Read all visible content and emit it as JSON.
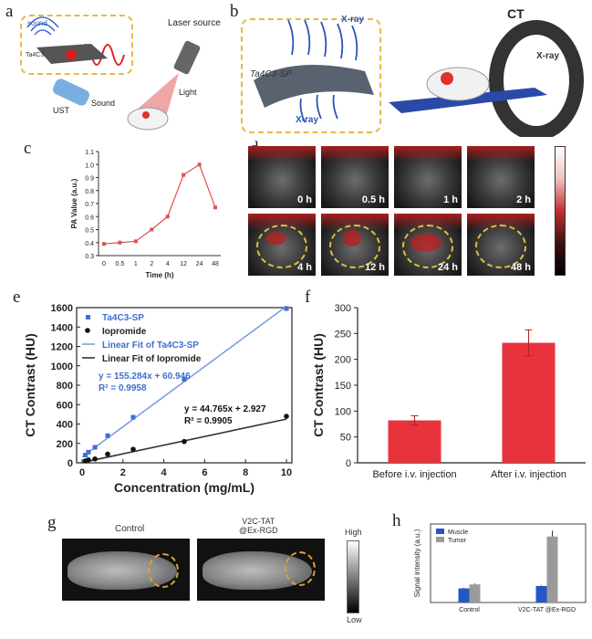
{
  "panels": {
    "a": {
      "label": "a",
      "texts": {
        "sound": "sound",
        "material": "Ta4C3",
        "laser": "Laser source",
        "light": "Light",
        "ust": "UST",
        "sound2": "Sound"
      }
    },
    "b": {
      "label": "b",
      "texts": {
        "xray_top": "X-ray",
        "xray_bottom": "X-ray",
        "material": "Ta4C3-SP",
        "ct": "CT",
        "xray_ring": "X-ray"
      }
    },
    "c": {
      "label": "c"
    },
    "d": {
      "label": "d",
      "tiles": [
        {
          "time": "0 h"
        },
        {
          "time": "0.5 h"
        },
        {
          "time": "1 h"
        },
        {
          "time": "2 h"
        },
        {
          "time": "4 h"
        },
        {
          "time": "12 h"
        },
        {
          "time": "24 h"
        },
        {
          "time": "48 h"
        }
      ]
    },
    "e": {
      "label": "e"
    },
    "f": {
      "label": "f"
    },
    "g": {
      "label": "g",
      "images": [
        {
          "title": "Control"
        },
        {
          "title": "V2C-TAT",
          "title2": "@Ex-RGD"
        }
      ],
      "scale": {
        "high": "High",
        "low": "Low"
      }
    },
    "h": {
      "label": "h"
    }
  },
  "chart_data": [
    {
      "id": "c",
      "type": "line",
      "xlabel": "Time (h)",
      "ylabel": "PA Value (a.u.)",
      "categories": [
        "0",
        "0.5",
        "1",
        "2",
        "4",
        "12",
        "24",
        "48"
      ],
      "values": [
        0.39,
        0.4,
        0.41,
        0.5,
        0.6,
        0.92,
        1.0,
        0.67
      ],
      "ylim": [
        0.3,
        1.1
      ],
      "yticks": [
        "0.3",
        "0.4",
        "0.5",
        "0.6",
        "0.7",
        "0.8",
        "0.9",
        "1.0",
        "1.1"
      ],
      "color": "#d9534f"
    },
    {
      "id": "e",
      "type": "scatter",
      "xlabel": "Concentration (mg/mL)",
      "ylabel": "CT Contrast (HU)",
      "xlim": [
        0,
        10
      ],
      "ylim": [
        0,
        1600
      ],
      "xticks": [
        "0",
        "2",
        "4",
        "6",
        "8",
        "10"
      ],
      "yticks": [
        "0",
        "200",
        "400",
        "600",
        "800",
        "1000",
        "1200",
        "1400",
        "1600"
      ],
      "series": [
        {
          "name": "Ta4C3-SP",
          "color": "#3f6fcf",
          "x": [
            0.16,
            0.31,
            0.63,
            1.25,
            2.5,
            5,
            10
          ],
          "y": [
            80,
            110,
            160,
            280,
            470,
            860,
            1590
          ]
        },
        {
          "name": "Iopromide",
          "color": "#111111",
          "x": [
            0.16,
            0.31,
            0.63,
            1.25,
            2.5,
            5,
            10
          ],
          "y": [
            20,
            30,
            40,
            90,
            140,
            220,
            480
          ]
        }
      ],
      "fits": [
        {
          "name": "Linear Fit of Ta4C3-SP",
          "color": "#7f9fdf",
          "slope": 155.284,
          "intercept": 60.946
        },
        {
          "name": "Linear Fit of Iopromide",
          "color": "#333333",
          "slope": 44.765,
          "intercept": 2.927
        }
      ],
      "annotations": [
        {
          "line1": "y = 155.284x + 60.946",
          "line2": "R² = 0.9958",
          "color": "#3f6fcf"
        },
        {
          "line1": "y = 44.765x + 2.927",
          "line2": "R² = 0.9905",
          "color": "#111111"
        }
      ]
    },
    {
      "id": "f",
      "type": "bar",
      "ylabel": "CT Contrast (HU)",
      "categories": [
        "Before i.v. injection",
        "After i.v. injection"
      ],
      "values": [
        82,
        232
      ],
      "errors": [
        9,
        25
      ],
      "ylim": [
        0,
        300
      ],
      "yticks": [
        "0",
        "50",
        "100",
        "150",
        "200",
        "250",
        "300"
      ],
      "color": "#e8323c"
    },
    {
      "id": "h",
      "type": "bar",
      "ylabel": "Signal intensity (a.u.)",
      "categories": [
        "Control",
        "V2C-TAT @Ex-RGD"
      ],
      "series": [
        {
          "name": "Muscle",
          "color": "#2457c5",
          "values": [
            900,
            1050
          ],
          "errors": [
            40,
            40
          ]
        },
        {
          "name": "Tumor",
          "color": "#9a9a9a",
          "values": [
            1150,
            4200
          ],
          "errors": [
            60,
            380
          ]
        }
      ],
      "ylim": [
        0,
        5000
      ]
    }
  ]
}
